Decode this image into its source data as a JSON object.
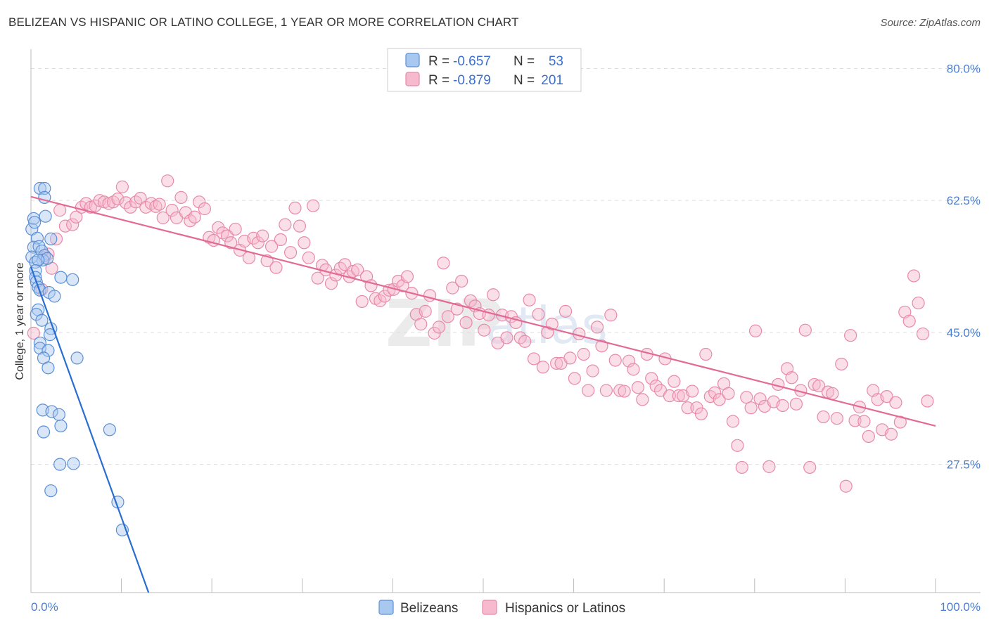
{
  "title": "BELIZEAN VS HISPANIC OR LATINO COLLEGE, 1 YEAR OR MORE CORRELATION CHART",
  "source": "Source: ZipAtlas.com",
  "watermark": {
    "zip": "ZIP",
    "atlas": "atlas"
  },
  "legend_box": [
    {
      "r_label": "R =",
      "r_value": "-0.657",
      "n_label": "N =",
      "n_value": "53"
    },
    {
      "r_label": "R =",
      "r_value": "-0.879",
      "n_label": "N =",
      "n_value": "201"
    }
  ],
  "bottom_legend": [
    "Belizeans",
    "Hispanics or Latinos"
  ],
  "colors": {
    "blue_fill": "#a9c8f0",
    "blue_stroke": "#5b8fd6",
    "blue_line": "#2a6dd0",
    "pink_fill": "#f7b9cd",
    "pink_stroke": "#e88aa8",
    "pink_line": "#e26a94",
    "grid": "#dddddd",
    "tick_text": "#4a7fd0"
  },
  "chart_data": {
    "type": "scatter",
    "title": "BELIZEAN VS HISPANIC OR LATINO COLLEGE, 1 YEAR OR MORE CORRELATION CHART",
    "xlabel": "",
    "ylabel": "College, 1 year or more",
    "xlim": [
      0,
      100
    ],
    "ylim": [
      10.5,
      82
    ],
    "x_tick_labels": [
      "0.0%",
      "100.0%"
    ],
    "y_ticks": [
      27.5,
      45.0,
      62.5,
      80.0
    ],
    "y_tick_labels": [
      "27.5%",
      "45.0%",
      "62.5%",
      "80.0%"
    ],
    "grid": true,
    "legend_position": "top-center",
    "series": [
      {
        "name": "Belizeans",
        "r": -0.657,
        "n": 53,
        "trend": {
          "x": [
            0.0,
            13.0
          ],
          "y": [
            53.7,
            10.5
          ]
        },
        "points": [
          [
            1.0,
            64.1
          ],
          [
            1.5,
            64.1
          ],
          [
            1.5,
            62.9
          ],
          [
            1.6,
            60.4
          ],
          [
            0.3,
            60.1
          ],
          [
            0.1,
            58.7
          ],
          [
            0.4,
            59.6
          ],
          [
            0.7,
            57.5
          ],
          [
            2.2,
            57.4
          ],
          [
            0.3,
            56.3
          ],
          [
            0.9,
            56.4
          ],
          [
            1.2,
            55.8
          ],
          [
            1.5,
            55.2
          ],
          [
            1.3,
            54.6
          ],
          [
            1.8,
            54.8
          ],
          [
            0.1,
            55.0
          ],
          [
            0.5,
            54.3
          ],
          [
            0.8,
            54.6
          ],
          [
            0.5,
            53.2
          ],
          [
            0.5,
            52.3
          ],
          [
            3.3,
            52.3
          ],
          [
            4.6,
            52.0
          ],
          [
            0.6,
            51.7
          ],
          [
            0.8,
            51.0
          ],
          [
            1.0,
            50.6
          ],
          [
            2.0,
            50.3
          ],
          [
            2.6,
            49.8
          ],
          [
            0.8,
            48.0
          ],
          [
            0.6,
            47.4
          ],
          [
            1.2,
            46.6
          ],
          [
            2.2,
            45.5
          ],
          [
            2.1,
            44.7
          ],
          [
            1.0,
            43.6
          ],
          [
            1.0,
            42.9
          ],
          [
            1.9,
            42.6
          ],
          [
            1.4,
            41.6
          ],
          [
            5.1,
            41.6
          ],
          [
            1.9,
            40.3
          ],
          [
            1.3,
            34.7
          ],
          [
            2.3,
            34.5
          ],
          [
            3.1,
            34.1
          ],
          [
            3.3,
            32.6
          ],
          [
            1.4,
            31.8
          ],
          [
            8.7,
            32.1
          ],
          [
            3.2,
            27.5
          ],
          [
            4.7,
            27.6
          ],
          [
            2.2,
            24.0
          ],
          [
            9.6,
            22.5
          ],
          [
            10.1,
            18.8
          ]
        ]
      },
      {
        "name": "Hispanics or Latinos",
        "r": -0.879,
        "n": 201,
        "trend": {
          "x": [
            0.0,
            100.0
          ],
          "y": [
            63.0,
            32.6
          ]
        },
        "points": [
          [
            0.3,
            44.9
          ],
          [
            1.2,
            50.7
          ],
          [
            1.5,
            54.9
          ],
          [
            1.9,
            55.4
          ],
          [
            2.3,
            53.5
          ],
          [
            2.8,
            57.4
          ],
          [
            3.2,
            61.2
          ],
          [
            3.8,
            59.1
          ],
          [
            4.6,
            59.3
          ],
          [
            5.0,
            60.3
          ],
          [
            5.6,
            61.6
          ],
          [
            6.1,
            62.1
          ],
          [
            6.6,
            61.6
          ],
          [
            7.1,
            61.8
          ],
          [
            7.6,
            62.5
          ],
          [
            8.1,
            62.3
          ],
          [
            8.6,
            62.1
          ],
          [
            9.1,
            62.3
          ],
          [
            9.6,
            62.7
          ],
          [
            10.1,
            64.3
          ],
          [
            10.5,
            62.2
          ],
          [
            11.0,
            61.6
          ],
          [
            11.6,
            62.3
          ],
          [
            12.1,
            62.8
          ],
          [
            12.7,
            61.6
          ],
          [
            13.3,
            62.1
          ],
          [
            13.8,
            61.7
          ],
          [
            14.2,
            62.0
          ],
          [
            14.6,
            60.2
          ],
          [
            15.1,
            65.1
          ],
          [
            15.6,
            61.2
          ],
          [
            16.1,
            60.2
          ],
          [
            16.6,
            62.9
          ],
          [
            17.1,
            60.9
          ],
          [
            17.6,
            59.8
          ],
          [
            18.1,
            60.3
          ],
          [
            18.6,
            62.3
          ],
          [
            19.2,
            61.4
          ],
          [
            19.7,
            57.6
          ],
          [
            20.2,
            57.2
          ],
          [
            20.7,
            58.9
          ],
          [
            21.2,
            58.2
          ],
          [
            21.7,
            57.8
          ],
          [
            22.1,
            56.9
          ],
          [
            22.6,
            58.7
          ],
          [
            23.1,
            55.9
          ],
          [
            23.6,
            57.1
          ],
          [
            24.1,
            54.9
          ],
          [
            24.6,
            57.5
          ],
          [
            25.1,
            56.9
          ],
          [
            25.6,
            57.8
          ],
          [
            26.1,
            54.5
          ],
          [
            26.6,
            56.4
          ],
          [
            27.1,
            53.6
          ],
          [
            27.6,
            57.3
          ],
          [
            28.1,
            59.3
          ],
          [
            28.7,
            55.6
          ],
          [
            29.2,
            61.5
          ],
          [
            29.7,
            59.1
          ],
          [
            30.2,
            56.9
          ],
          [
            30.7,
            54.9
          ],
          [
            31.2,
            61.8
          ],
          [
            31.7,
            52.2
          ],
          [
            32.2,
            53.9
          ],
          [
            32.6,
            53.3
          ],
          [
            33.2,
            51.5
          ],
          [
            33.7,
            52.6
          ],
          [
            34.2,
            53.5
          ],
          [
            34.7,
            54.0
          ],
          [
            35.2,
            52.4
          ],
          [
            35.6,
            53.1
          ],
          [
            36.1,
            53.3
          ],
          [
            36.6,
            49.1
          ],
          [
            37.1,
            52.4
          ],
          [
            37.6,
            51.2
          ],
          [
            38.1,
            49.5
          ],
          [
            38.6,
            49.2
          ],
          [
            39.1,
            49.8
          ],
          [
            39.6,
            50.6
          ],
          [
            40.1,
            50.7
          ],
          [
            40.6,
            51.8
          ],
          [
            41.1,
            51.2
          ],
          [
            41.6,
            52.4
          ],
          [
            42.1,
            50.2
          ],
          [
            42.6,
            47.4
          ],
          [
            43.1,
            46.1
          ],
          [
            43.6,
            47.8
          ],
          [
            44.1,
            49.9
          ],
          [
            44.6,
            44.9
          ],
          [
            45.1,
            45.7
          ],
          [
            45.6,
            54.2
          ],
          [
            46.1,
            47.1
          ],
          [
            46.6,
            50.9
          ],
          [
            47.1,
            48.1
          ],
          [
            47.6,
            51.8
          ],
          [
            48.1,
            46.3
          ],
          [
            48.6,
            49.2
          ],
          [
            49.1,
            48.5
          ],
          [
            49.6,
            47.5
          ],
          [
            50.1,
            45.3
          ],
          [
            50.6,
            47.3
          ],
          [
            51.1,
            50.0
          ],
          [
            51.6,
            43.6
          ],
          [
            52.1,
            47.3
          ],
          [
            52.6,
            44.3
          ],
          [
            53.1,
            47.1
          ],
          [
            53.6,
            46.3
          ],
          [
            54.1,
            44.3
          ],
          [
            54.6,
            43.8
          ],
          [
            55.1,
            49.3
          ],
          [
            55.6,
            41.5
          ],
          [
            56.1,
            47.4
          ],
          [
            56.6,
            40.4
          ],
          [
            57.1,
            45.0
          ],
          [
            57.6,
            46.1
          ],
          [
            58.1,
            40.9
          ],
          [
            58.6,
            40.9
          ],
          [
            59.1,
            47.8
          ],
          [
            59.6,
            41.6
          ],
          [
            60.1,
            38.9
          ],
          [
            60.6,
            44.8
          ],
          [
            61.1,
            42.1
          ],
          [
            61.6,
            37.3
          ],
          [
            62.1,
            39.9
          ],
          [
            62.6,
            45.7
          ],
          [
            63.1,
            43.2
          ],
          [
            63.6,
            37.3
          ],
          [
            64.1,
            47.3
          ],
          [
            64.6,
            41.3
          ],
          [
            65.1,
            37.3
          ],
          [
            65.6,
            37.2
          ],
          [
            66.1,
            41.2
          ],
          [
            66.6,
            40.1
          ],
          [
            67.1,
            37.7
          ],
          [
            67.6,
            36.1
          ],
          [
            68.1,
            42.1
          ],
          [
            68.6,
            38.9
          ],
          [
            69.1,
            37.9
          ],
          [
            69.6,
            37.3
          ],
          [
            70.1,
            41.5
          ],
          [
            70.6,
            36.6
          ],
          [
            71.1,
            38.5
          ],
          [
            71.6,
            36.6
          ],
          [
            72.1,
            36.6
          ],
          [
            72.6,
            35.0
          ],
          [
            73.1,
            37.2
          ],
          [
            73.6,
            35.0
          ],
          [
            74.1,
            34.2
          ],
          [
            74.6,
            42.1
          ],
          [
            75.1,
            36.5
          ],
          [
            75.6,
            37.0
          ],
          [
            76.1,
            36.1
          ],
          [
            76.6,
            38.2
          ],
          [
            77.1,
            36.9
          ],
          [
            77.6,
            33.2
          ],
          [
            78.1,
            30.0
          ],
          [
            78.6,
            27.1
          ],
          [
            79.1,
            36.4
          ],
          [
            79.6,
            35.0
          ],
          [
            80.1,
            45.2
          ],
          [
            80.6,
            36.2
          ],
          [
            81.1,
            35.2
          ],
          [
            81.6,
            27.2
          ],
          [
            82.1,
            35.8
          ],
          [
            82.6,
            38.1
          ],
          [
            83.1,
            35.3
          ],
          [
            83.6,
            40.2
          ],
          [
            84.1,
            39.0
          ],
          [
            84.6,
            35.5
          ],
          [
            85.1,
            37.3
          ],
          [
            85.6,
            45.3
          ],
          [
            86.1,
            27.1
          ],
          [
            86.6,
            38.1
          ],
          [
            87.1,
            37.9
          ],
          [
            87.6,
            33.8
          ],
          [
            88.1,
            37.1
          ],
          [
            88.6,
            36.9
          ],
          [
            89.1,
            33.6
          ],
          [
            89.6,
            40.8
          ],
          [
            90.1,
            24.6
          ],
          [
            90.6,
            44.6
          ],
          [
            91.1,
            33.3
          ],
          [
            91.6,
            35.1
          ],
          [
            92.1,
            33.2
          ],
          [
            92.6,
            31.2
          ],
          [
            93.1,
            37.3
          ],
          [
            93.6,
            36.1
          ],
          [
            94.1,
            32.1
          ],
          [
            94.6,
            36.5
          ],
          [
            95.1,
            31.5
          ],
          [
            95.6,
            35.7
          ],
          [
            96.1,
            33.1
          ],
          [
            96.6,
            47.7
          ],
          [
            97.1,
            46.5
          ],
          [
            97.6,
            52.5
          ],
          [
            98.1,
            48.9
          ],
          [
            98.6,
            44.8
          ],
          [
            99.1,
            35.9
          ]
        ]
      }
    ]
  }
}
